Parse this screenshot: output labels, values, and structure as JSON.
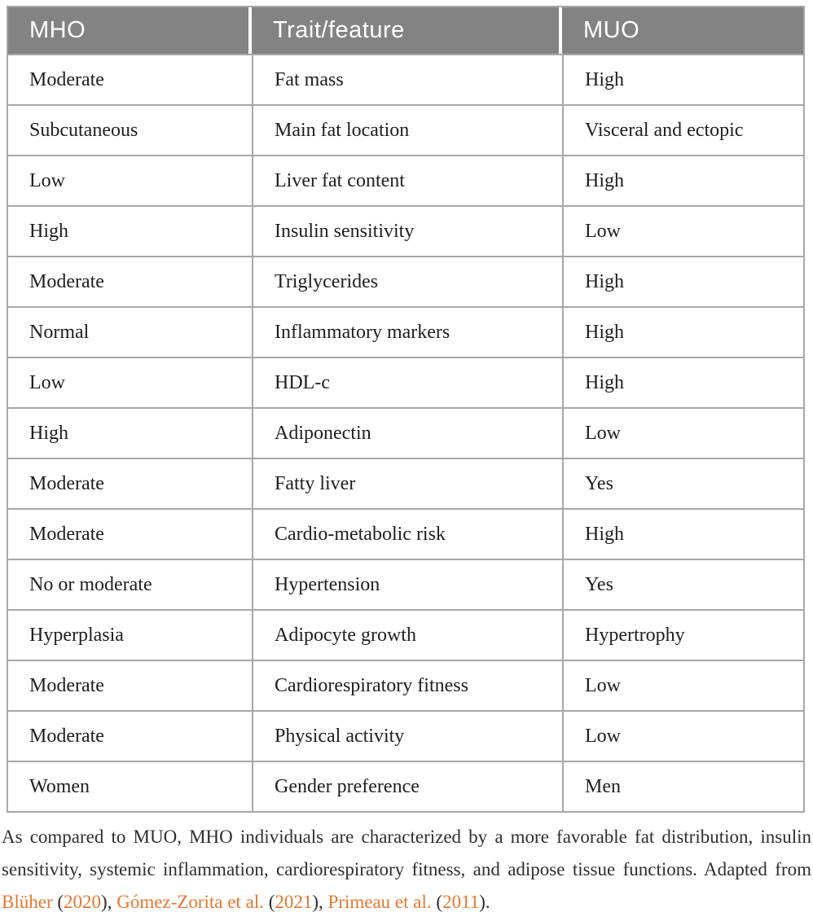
{
  "table": {
    "headers": [
      "MHO",
      "Trait/feature",
      "MUO"
    ],
    "rows": [
      {
        "mho": "Moderate",
        "trait": "Fat mass",
        "muo": "High"
      },
      {
        "mho": "Subcutaneous",
        "trait": "Main fat location",
        "muo": "Visceral and ectopic"
      },
      {
        "mho": "Low",
        "trait": "Liver fat content",
        "muo": "High"
      },
      {
        "mho": "High",
        "trait": "Insulin sensitivity",
        "muo": "Low"
      },
      {
        "mho": "Moderate",
        "trait": "Triglycerides",
        "muo": "High"
      },
      {
        "mho": "Normal",
        "trait": "Inflammatory markers",
        "muo": "High"
      },
      {
        "mho": "Low",
        "trait": "HDL-c",
        "muo": "High"
      },
      {
        "mho": "High",
        "trait": "Adiponectin",
        "muo": "Low"
      },
      {
        "mho": "Moderate",
        "trait": "Fatty liver",
        "muo": "Yes"
      },
      {
        "mho": "Moderate",
        "trait": "Cardio-metabolic risk",
        "muo": "High"
      },
      {
        "mho": "No or moderate",
        "trait": "Hypertension",
        "muo": "Yes"
      },
      {
        "mho": "Hyperplasia",
        "trait": "Adipocyte growth",
        "muo": "Hypertrophy"
      },
      {
        "mho": "Moderate",
        "trait": "Cardiorespiratory fitness",
        "muo": "Low"
      },
      {
        "mho": "Moderate",
        "trait": "Physical activity",
        "muo": "Low"
      },
      {
        "mho": "Women",
        "trait": "Gender preference",
        "muo": "Men"
      }
    ]
  },
  "footer": {
    "segments": [
      {
        "text": "As compared to MUO, MHO individuals are characterized by a more favorable fat distribution, insulin sensitivity, systemic inflammation, cardiorespiratory fitness, and adipose tissue functions. Adapted from "
      },
      {
        "text": "Blüher"
      },
      {
        "text": " ("
      },
      {
        "text": "2020"
      },
      {
        "text": "), "
      },
      {
        "text": "Gómez-Zorita et al."
      },
      {
        "text": " ("
      },
      {
        "text": "2021"
      },
      {
        "text": "), "
      },
      {
        "text": "Primeau et al."
      },
      {
        "text": " ("
      },
      {
        "text": "2011"
      },
      {
        "text": ")."
      }
    ]
  },
  "colors": {
    "header_bg": "#838383",
    "header_text": "#ffffff",
    "border": "#a7a7a7",
    "body_text": "#1e1e1e",
    "caption_text": "#2e2e2e",
    "citation": "#e5772f"
  }
}
